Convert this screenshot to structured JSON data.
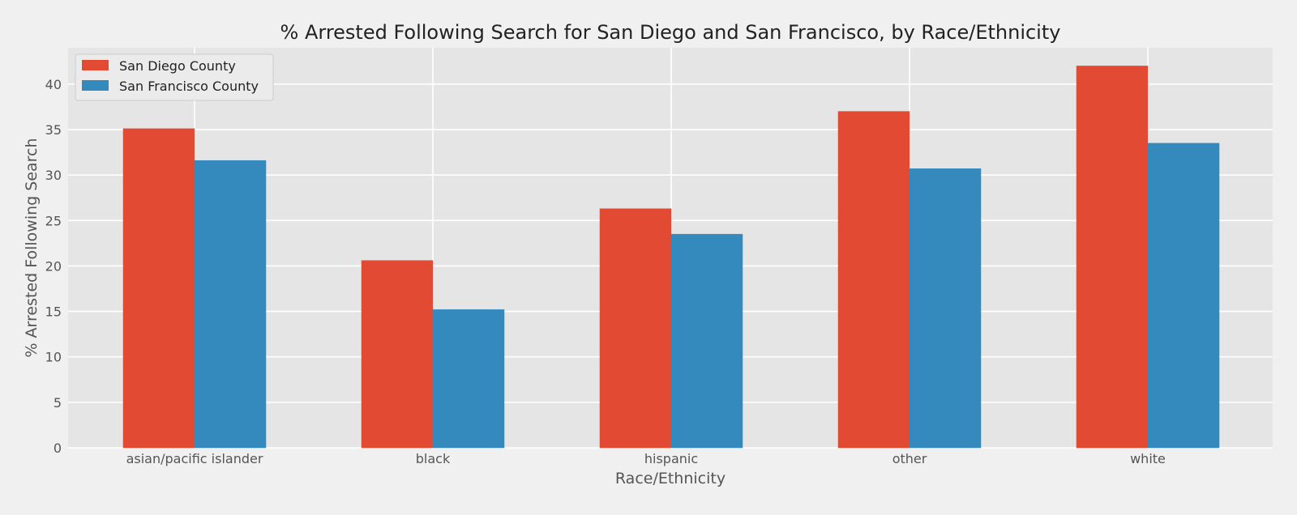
{
  "chart_data": {
    "type": "bar",
    "title": "% Arrested Following Search for San Diego and San Francisco, by Race/Ethnicity",
    "xlabel": "Race/Ethnicity",
    "ylabel": "% Arrested Following Search",
    "categories": [
      "asian/pacific islander",
      "black",
      "hispanic",
      "other",
      "white"
    ],
    "series": [
      {
        "name": "San Diego County",
        "color": "#e24a33",
        "values": [
          35.1,
          20.6,
          26.3,
          37.0,
          42.0
        ]
      },
      {
        "name": "San Francisco County",
        "color": "#348abd",
        "values": [
          31.6,
          15.2,
          23.5,
          30.7,
          33.5
        ]
      }
    ],
    "ylim": [
      0,
      44
    ],
    "yticks": [
      0,
      5,
      10,
      15,
      20,
      25,
      30,
      35,
      40
    ],
    "grid": true,
    "legend_position": "top-left",
    "background_color": "#e5e5e5",
    "grid_color": "#ffffff"
  }
}
